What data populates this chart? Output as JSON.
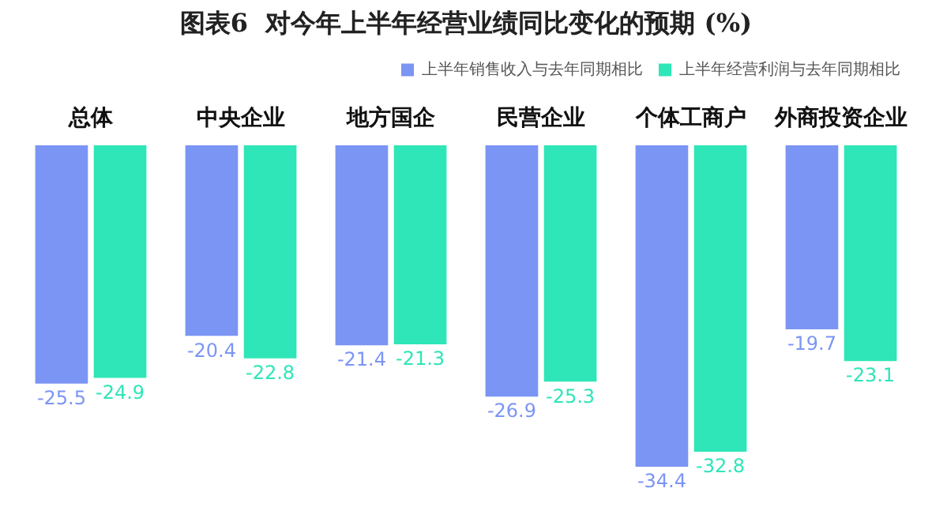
{
  "chart_data": {
    "type": "bar",
    "title": "图表6  对今年上半年经营业绩同比变化的预期 (%)",
    "categories": [
      "总体",
      "中央企业",
      "地方国企",
      "民营企业",
      "个体工商户",
      "外商投资企业"
    ],
    "series": [
      {
        "name": "上半年销售收入与去年同期相比",
        "color": "#7b95f4",
        "values": [
          -25.5,
          -20.4,
          -21.4,
          -26.9,
          -34.4,
          -19.7
        ]
      },
      {
        "name": "上半年经营利润与去年同期相比",
        "color": "#2ee6b8",
        "values": [
          -24.9,
          -22.8,
          -21.3,
          -25.3,
          -32.8,
          -23.1
        ]
      }
    ],
    "data_labels": true,
    "legend": "top right",
    "grid": false,
    "tick_labels": "x"
  }
}
